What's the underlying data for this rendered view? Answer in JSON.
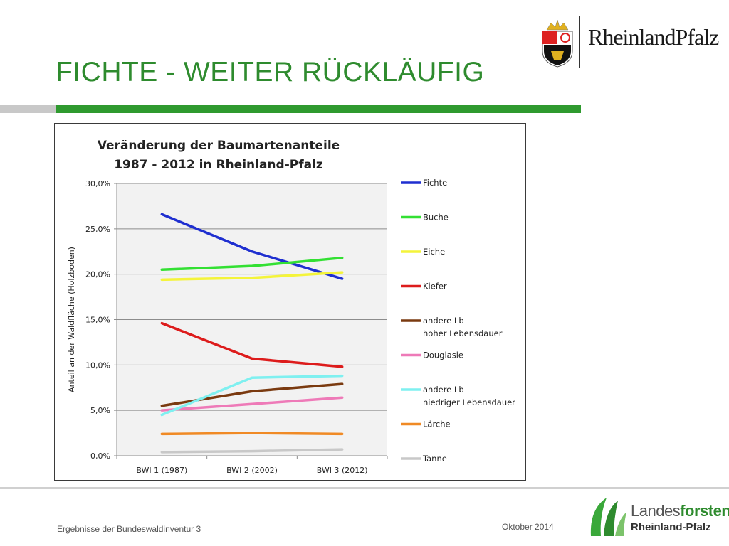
{
  "slide": {
    "title": "FICHTE - WEITER RÜCKLÄUFIG",
    "logo_text": "RheinlandPfalz",
    "footer_left": "Ergebnisse der Bundeswaldinventur 3",
    "footer_date": "Oktober 2014",
    "lf_logo_line1a": "Landes",
    "lf_logo_line1b": "forsten",
    "lf_logo_line2": "Rheinland-Pfalz"
  },
  "colors": {
    "title_green": "#2e8b2e",
    "plot_bg": "#f2f2f2",
    "grid": "#8c8c8c"
  },
  "chart_data": {
    "type": "line",
    "title_line1": "Veränderung der Baumartenanteile",
    "title_line2": "1987 - 2012 in Rheinland-Pfalz",
    "ylabel": "Anteil an der Waldfläche (Holzboden)",
    "xlabel": "",
    "categories": [
      "BWI 1 (1987)",
      "BWI 2 (2002)",
      "BWI 3 (2012)"
    ],
    "ylim": [
      0,
      30
    ],
    "yticks": [
      "0,0%",
      "5,0%",
      "10,0%",
      "15,0%",
      "20,0%",
      "25,0%",
      "30,0%"
    ],
    "grid": true,
    "legend_position": "right",
    "series": [
      {
        "name": "Fichte",
        "color": "#1f2fd0",
        "values": [
          26.6,
          22.5,
          19.5
        ]
      },
      {
        "name": "Buche",
        "color": "#33e033",
        "values": [
          20.5,
          20.9,
          21.8
        ]
      },
      {
        "name": "Eiche",
        "color": "#f4f43a",
        "values": [
          19.4,
          19.6,
          20.2
        ]
      },
      {
        "name": "Kiefer",
        "color": "#dd1c1c",
        "values": [
          14.6,
          10.7,
          9.8
        ]
      },
      {
        "name": "andere Lb\nhoher Lebensdauer",
        "color": "#7a3a10",
        "values": [
          5.5,
          7.1,
          7.9
        ]
      },
      {
        "name": "Douglasie",
        "color": "#ee7ab8",
        "values": [
          5.0,
          5.7,
          6.4
        ]
      },
      {
        "name": "andere Lb\nniedriger Lebensdauer",
        "color": "#7ff0f0",
        "values": [
          4.5,
          8.6,
          8.8
        ]
      },
      {
        "name": "Lärche",
        "color": "#f08a25",
        "values": [
          2.4,
          2.5,
          2.4
        ]
      },
      {
        "name": "Tanne",
        "color": "#c8c8c8",
        "values": [
          0.4,
          0.5,
          0.7
        ]
      }
    ]
  }
}
